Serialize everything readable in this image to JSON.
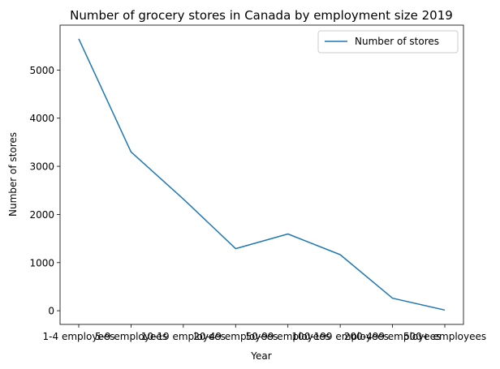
{
  "chart_data": {
    "type": "line",
    "title": "Number of grocery stores in Canada by employment size 2019",
    "xlabel": "Year",
    "ylabel": "Number of stores",
    "categories": [
      "1-4 employees",
      "5-9 employees",
      "10-19 employees",
      "20-49 employees",
      "50-99 employees",
      "100-199 employees",
      "200-499 employees",
      "500+ employees"
    ],
    "series": [
      {
        "name": "Number of stores",
        "values": [
          5650,
          3300,
          2320,
          1290,
          1595,
          1165,
          260,
          15
        ],
        "color": "#1f77b4"
      }
    ],
    "ylim": [
      -284,
      5933
    ],
    "yticks": [
      0,
      1000,
      2000,
      3000,
      4000,
      5000
    ],
    "grid": false,
    "legend_position": "upper right"
  }
}
